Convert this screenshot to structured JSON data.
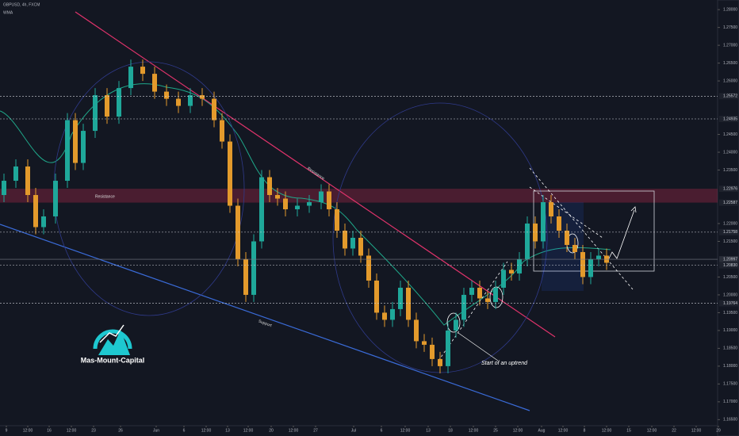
{
  "chart_data": {
    "type": "candlestick",
    "title": "GBPUSD, 4h, FXCM",
    "subtitle": "WMA",
    "up_color": "#1fa89a",
    "down_color": "#e39a2c",
    "grid": false,
    "xlim": [
      0,
      905
    ],
    "ylim": [
      1.1633,
      1.2827
    ],
    "xticks": [
      {
        "value": 8,
        "label": "9"
      },
      {
        "value": 35,
        "label": "12:00"
      },
      {
        "value": 62,
        "label": "16"
      },
      {
        "value": 90,
        "label": "12:00"
      },
      {
        "value": 118,
        "label": "23"
      },
      {
        "value": 152,
        "label": "26"
      },
      {
        "value": 197,
        "label": "Jun"
      },
      {
        "value": 232,
        "label": "6"
      },
      {
        "value": 260,
        "label": "12:00"
      },
      {
        "value": 287,
        "label": "13"
      },
      {
        "value": 313,
        "label": "12:00"
      },
      {
        "value": 342,
        "label": "20"
      },
      {
        "value": 370,
        "label": "12:00"
      },
      {
        "value": 398,
        "label": "27"
      },
      {
        "value": 446,
        "label": "Jul"
      },
      {
        "value": 481,
        "label": "6"
      },
      {
        "value": 511,
        "label": "12:00"
      },
      {
        "value": 540,
        "label": "13"
      },
      {
        "value": 568,
        "label": "18"
      },
      {
        "value": 597,
        "label": "12:00"
      },
      {
        "value": 625,
        "label": "25"
      },
      {
        "value": 653,
        "label": "12:00"
      },
      {
        "value": 683,
        "label": "Aug"
      },
      {
        "value": 710,
        "label": "12:00"
      },
      {
        "value": 737,
        "label": "8"
      },
      {
        "value": 765,
        "label": "12:00"
      },
      {
        "value": 793,
        "label": "15"
      },
      {
        "value": 822,
        "label": "12:00"
      },
      {
        "value": 850,
        "label": "22"
      },
      {
        "value": 878,
        "label": "12:00"
      },
      {
        "value": 906,
        "label": "29"
      }
    ],
    "yticks": [
      {
        "value": 1.165,
        "label": "1.16500"
      },
      {
        "value": 1.17,
        "label": "1.17000"
      },
      {
        "value": 1.175,
        "label": "1.17500"
      },
      {
        "value": 1.18,
        "label": "1.18000"
      },
      {
        "value": 1.185,
        "label": "1.18500"
      },
      {
        "value": 1.19,
        "label": "1.19000"
      },
      {
        "value": 1.195,
        "label": "1.19500"
      },
      {
        "value": 1.2,
        "label": "1.20000"
      },
      {
        "value": 1.205,
        "label": "1.20500"
      },
      {
        "value": 1.215,
        "label": "1.21500"
      },
      {
        "value": 1.22,
        "label": "1.22000"
      },
      {
        "value": 1.235,
        "label": "1.23500"
      },
      {
        "value": 1.24,
        "label": "1.24000"
      },
      {
        "value": 1.245,
        "label": "1.24500"
      },
      {
        "value": 1.26,
        "label": "1.26000"
      },
      {
        "value": 1.265,
        "label": "1.26500"
      },
      {
        "value": 1.27,
        "label": "1.27000"
      },
      {
        "value": 1.275,
        "label": "1.27500"
      },
      {
        "value": 1.28,
        "label": "1.28000"
      }
    ],
    "levels": [
      {
        "value": 1.25572,
        "label": "1.25572"
      },
      {
        "value": 1.24935,
        "label": "1.24935"
      },
      {
        "value": 1.22976,
        "label": "1.22976"
      },
      {
        "value": 1.22587,
        "label": "1.22587"
      },
      {
        "value": 1.21758,
        "label": "1.21758"
      },
      {
        "value": 1.20997,
        "label": "1.20997"
      },
      {
        "value": 1.2083,
        "label": "1.20830"
      },
      {
        "value": 1.19764,
        "label": "1.19764"
      }
    ],
    "x": [
      5,
      20,
      35,
      45,
      55,
      70,
      85,
      95,
      105,
      120,
      135,
      150,
      165,
      180,
      195,
      210,
      225,
      240,
      255,
      270,
      280,
      290,
      300,
      310,
      320,
      330,
      340,
      350,
      360,
      375,
      390,
      405,
      415,
      425,
      435,
      445,
      455,
      465,
      475,
      485,
      495,
      505,
      515,
      525,
      535,
      545,
      555,
      565,
      575,
      585,
      595,
      605,
      615,
      625,
      635,
      645,
      655,
      665,
      675,
      685,
      695,
      705,
      715,
      725,
      735,
      745,
      755,
      765
    ],
    "open": [
      1.228,
      1.232,
      1.236,
      1.228,
      1.219,
      1.222,
      1.232,
      1.249,
      1.237,
      1.246,
      1.256,
      1.25,
      1.258,
      1.264,
      1.262,
      1.257,
      1.255,
      1.253,
      1.256,
      1.255,
      1.249,
      1.243,
      1.225,
      1.21,
      1.2,
      1.215,
      1.233,
      1.228,
      1.227,
      1.224,
      1.225,
      1.226,
      1.229,
      1.224,
      1.218,
      1.213,
      1.216,
      1.211,
      1.204,
      1.195,
      1.193,
      1.196,
      1.202,
      1.193,
      1.187,
      1.186,
      1.182,
      1.18,
      1.19,
      1.193,
      1.2,
      1.202,
      1.199,
      1.198,
      1.202,
      1.207,
      1.206,
      1.21,
      1.22,
      1.215,
      1.226,
      1.222,
      1.218,
      1.214,
      1.212,
      1.205,
      1.21,
      1.211
    ],
    "high": [
      1.234,
      1.238,
      1.238,
      1.23,
      1.224,
      1.234,
      1.251,
      1.251,
      1.248,
      1.258,
      1.258,
      1.26,
      1.266,
      1.266,
      1.264,
      1.259,
      1.257,
      1.258,
      1.258,
      1.257,
      1.251,
      1.245,
      1.227,
      1.212,
      1.217,
      1.235,
      1.235,
      1.23,
      1.229,
      1.227,
      1.228,
      1.231,
      1.231,
      1.226,
      1.22,
      1.218,
      1.218,
      1.213,
      1.206,
      1.197,
      1.198,
      1.204,
      1.204,
      1.195,
      1.189,
      1.188,
      1.184,
      1.192,
      1.195,
      1.202,
      1.204,
      1.204,
      1.201,
      1.204,
      1.209,
      1.209,
      1.212,
      1.222,
      1.222,
      1.228,
      1.228,
      1.224,
      1.22,
      1.216,
      1.214,
      1.212,
      1.213,
      1.213
    ],
    "low": [
      1.226,
      1.23,
      1.226,
      1.217,
      1.217,
      1.22,
      1.23,
      1.235,
      1.235,
      1.244,
      1.248,
      1.248,
      1.256,
      1.26,
      1.255,
      1.253,
      1.251,
      1.251,
      1.253,
      1.247,
      1.241,
      1.223,
      1.208,
      1.198,
      1.198,
      1.213,
      1.226,
      1.225,
      1.222,
      1.222,
      1.223,
      1.224,
      1.222,
      1.216,
      1.211,
      1.211,
      1.209,
      1.202,
      1.193,
      1.191,
      1.191,
      1.194,
      1.191,
      1.185,
      1.184,
      1.18,
      1.178,
      1.178,
      1.188,
      1.191,
      1.198,
      1.197,
      1.196,
      1.196,
      1.2,
      1.204,
      1.204,
      1.208,
      1.213,
      1.213,
      1.22,
      1.216,
      1.212,
      1.21,
      1.203,
      1.203,
      1.208,
      1.207
    ],
    "close": [
      1.232,
      1.236,
      1.228,
      1.219,
      1.222,
      1.232,
      1.249,
      1.237,
      1.246,
      1.256,
      1.25,
      1.258,
      1.264,
      1.262,
      1.257,
      1.255,
      1.253,
      1.256,
      1.255,
      1.249,
      1.243,
      1.225,
      1.21,
      1.2,
      1.215,
      1.233,
      1.228,
      1.227,
      1.224,
      1.225,
      1.226,
      1.229,
      1.224,
      1.218,
      1.213,
      1.216,
      1.211,
      1.204,
      1.195,
      1.193,
      1.196,
      1.202,
      1.193,
      1.187,
      1.186,
      1.182,
      1.18,
      1.19,
      1.193,
      1.2,
      1.202,
      1.199,
      1.198,
      1.202,
      1.207,
      1.206,
      1.21,
      1.22,
      1.215,
      1.226,
      1.222,
      1.218,
      1.214,
      1.212,
      1.205,
      1.21,
      1.211,
      1.209
    ],
    "annotations": {
      "zone": "Resistance",
      "trend_resistance": "Resistance",
      "support": "Support",
      "uptrend": "Start of an uptrend",
      "logo": "Mas-Mount-Capital"
    }
  }
}
